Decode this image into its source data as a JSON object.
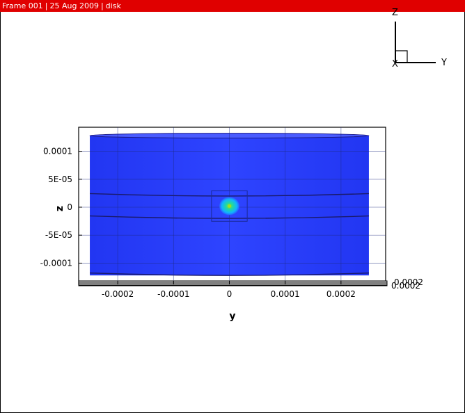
{
  "frame_header": {
    "frame": "Frame 001",
    "date": "25 Aug 2009",
    "name": "disk"
  },
  "colors": {
    "header": "#e00000",
    "disk_fill": "#2a40ff",
    "disk_edge": "#1a1a8a",
    "spot_outer": "#00b8ff",
    "spot_mid": "#20d8b0",
    "spot_core": "#6ee040"
  },
  "orientation_axes": {
    "vertical": "Z",
    "horizontal": "Y",
    "origin": "X"
  },
  "chart_data": {
    "type": "3d-surface-projection",
    "xlabel": "y",
    "ylabel": "z",
    "x_ticks": [
      {
        "value": -0.0002,
        "label": "-0.0002"
      },
      {
        "value": -0.0001,
        "label": "-0.0001"
      },
      {
        "value": 0,
        "label": "0"
      },
      {
        "value": 0.0001,
        "label": "0.0001"
      },
      {
        "value": 0.0002,
        "label": "0.0002"
      }
    ],
    "y_ticks": [
      {
        "value": 0.0001,
        "label": "0.0001"
      },
      {
        "value": 5e-05,
        "label": "5E-05"
      },
      {
        "value": 0,
        "label": "0"
      },
      {
        "value": -5e-05,
        "label": "-5E-05"
      },
      {
        "value": -0.0001,
        "label": "-0.0001"
      }
    ],
    "xlim": [
      -0.00027,
      0.00028
    ],
    "ylim": [
      -0.000138,
      0.000143
    ],
    "depth_axis_labels": [
      "0.0002",
      "0.0002"
    ],
    "grid": true,
    "disk": {
      "y_range": [
        -0.00025,
        0.00025
      ],
      "z_range": [
        -0.000122,
        0.000128
      ],
      "inner_band_z": [
        2e-05,
        -2e-05
      ]
    },
    "hotspot": {
      "y": 0.0,
      "z": 2e-06,
      "radius_y": 2e-05,
      "radius_z": 1.7e-05
    }
  }
}
